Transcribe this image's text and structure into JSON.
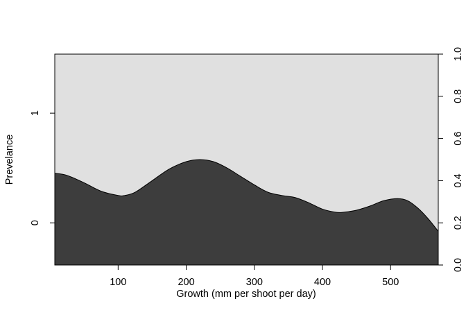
{
  "chart_data": {
    "type": "area",
    "subtype": "conditional-density",
    "xlabel": "Growth (mm per shoot per day)",
    "ylabel": "Prevelance",
    "x": [
      7,
      25,
      50,
      75,
      100,
      110,
      125,
      150,
      175,
      200,
      220,
      240,
      260,
      280,
      300,
      320,
      340,
      360,
      380,
      400,
      420,
      430,
      450,
      470,
      490,
      510,
      525,
      540,
      555,
      570
    ],
    "series": [
      {
        "values": [
          0.435,
          0.425,
          0.39,
          0.35,
          0.33,
          0.33,
          0.345,
          0.4,
          0.455,
          0.49,
          0.5,
          0.49,
          0.46,
          0.42,
          0.38,
          0.345,
          0.33,
          0.32,
          0.295,
          0.265,
          0.25,
          0.25,
          0.26,
          0.28,
          0.305,
          0.315,
          0.305,
          0.27,
          0.22,
          0.16
        ]
      }
    ],
    "xlim": [
      7,
      570
    ],
    "ylim": [
      0,
      1
    ],
    "x_ticks": [
      100,
      200,
      300,
      400,
      500
    ],
    "left_ticks": [
      {
        "label": "0",
        "value": 0.2
      },
      {
        "label": "1",
        "value": 0.72
      }
    ],
    "right_ticks": [
      {
        "label": "0.0",
        "value": 0.0
      },
      {
        "label": "0.2",
        "value": 0.2
      },
      {
        "label": "0.4",
        "value": 0.4
      },
      {
        "label": "0.6",
        "value": 0.6
      },
      {
        "label": "0.8",
        "value": 0.8
      },
      {
        "label": "1.0",
        "value": 1.0
      }
    ],
    "grid": false,
    "colors": {
      "lower": "#3d3d3d",
      "upper": "#e0e0e0",
      "axis": "#000000"
    }
  }
}
